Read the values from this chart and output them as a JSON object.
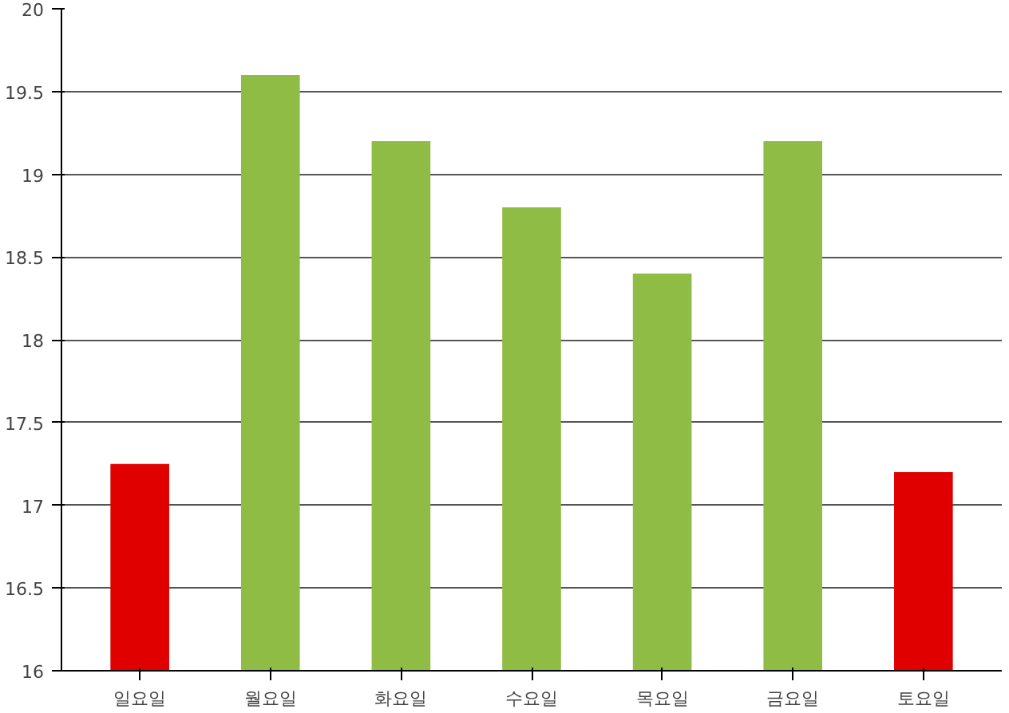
{
  "chart_data": {
    "type": "bar",
    "categories": [
      "일요일",
      "월요일",
      "화요일",
      "수요일",
      "목요일",
      "금요일",
      "토요일"
    ],
    "values": [
      17.25,
      19.6,
      19.2,
      18.8,
      18.4,
      19.2,
      17.2
    ],
    "colors": [
      "#e00000",
      "#8fbc45",
      "#8fbc45",
      "#8fbc45",
      "#8fbc45",
      "#8fbc45",
      "#e00000"
    ],
    "ylim": [
      16,
      20
    ],
    "yticks": [
      16,
      16.5,
      17,
      17.5,
      18,
      18.5,
      19,
      19.5,
      20
    ],
    "grid": "y"
  }
}
